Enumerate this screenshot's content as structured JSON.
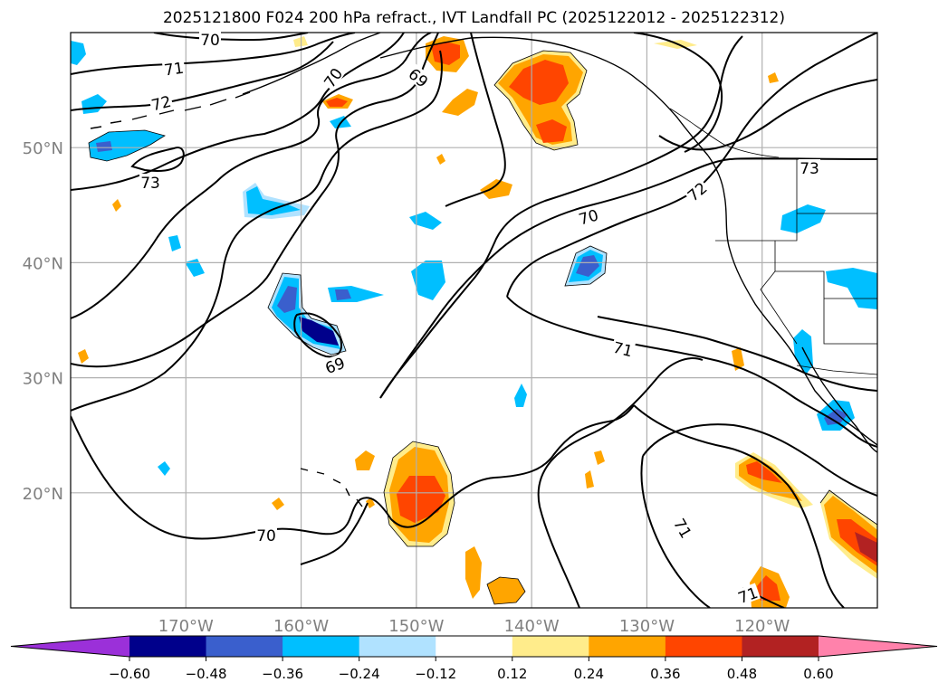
{
  "title": "2025121800 F024 200 hPa refract., IVT Landfall PC (2025122012 - 2025122312)",
  "map": {
    "lat_ticks": [
      "50°N",
      "40°N",
      "30°N",
      "20°N"
    ],
    "lon_ticks": [
      "170°W",
      "160°W",
      "150°W",
      "140°W",
      "130°W",
      "120°W"
    ],
    "lat_values": [
      50,
      40,
      30,
      20
    ],
    "lon_values": [
      -170,
      -160,
      -150,
      -140,
      -130,
      -120
    ],
    "extent": {
      "lon_min": -180,
      "lon_max": -110,
      "lat_min": 10,
      "lat_max": 60
    },
    "contour_labels": [
      "70",
      "71",
      "72",
      "73",
      "69",
      "70",
      "70",
      "72",
      "71",
      "73",
      "69",
      "71",
      "70",
      "71",
      "71"
    ]
  },
  "colorbar": {
    "ticks": [
      "−0.60",
      "−0.48",
      "−0.36",
      "−0.24",
      "−0.12",
      "0.12",
      "0.24",
      "0.36",
      "0.48",
      "0.60"
    ],
    "colors": [
      "#9b30d9",
      "#00008b",
      "#3a5fcd",
      "#00bfff",
      "#b0e2ff",
      "#ffffff",
      "#ffec8b",
      "#ffa500",
      "#ff4500",
      "#b22222",
      "#ff82ab"
    ],
    "extend": "both"
  },
  "palette": {
    "neg_strong": "#00008b",
    "neg_mid": "#3a5fcd",
    "neg": "#00bfff",
    "neg_light": "#b0e2ff",
    "pos_light": "#ffec8b",
    "pos": "#ffa500",
    "pos_mid": "#ff4500",
    "pos_strong": "#b22222",
    "grid": "#b0b0b0",
    "tick_label": "#808080"
  }
}
